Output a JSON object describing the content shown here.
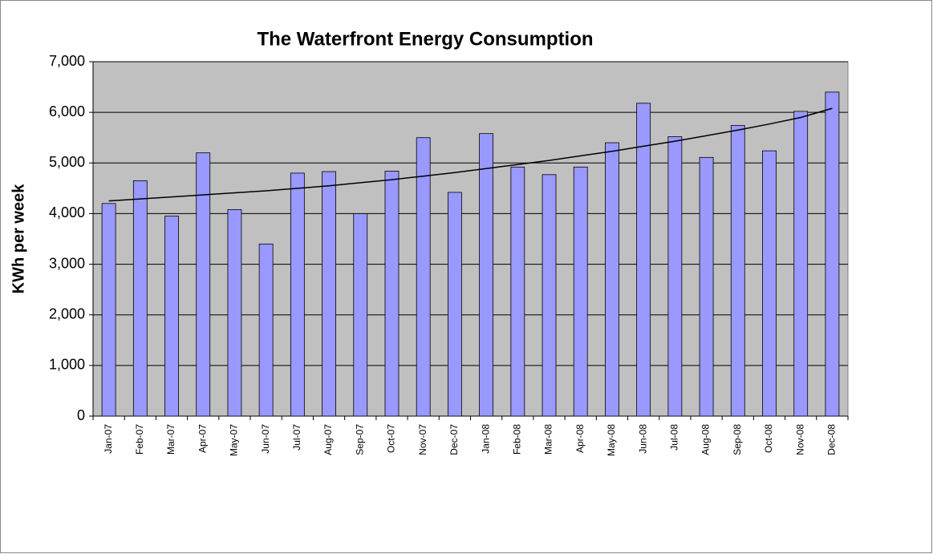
{
  "chart_data": {
    "type": "bar",
    "title": "The Waterfront Energy Consumption",
    "y_label": "KWh per week",
    "categories": [
      "Jan-07",
      "Feb-07",
      "Mar-07",
      "Apr-07",
      "May-07",
      "Jun-07",
      "Jul-07",
      "Aug-07",
      "Sep-07",
      "Oct-07",
      "Nov-07",
      "Dec-07",
      "Jan-08",
      "Feb-08",
      "Mar-08",
      "Apr-08",
      "May-08",
      "Jun-08",
      "Jul-08",
      "Aug-08",
      "Sep-08",
      "Oct-08",
      "Nov-08",
      "Dec-08"
    ],
    "values": [
      4200,
      4650,
      3950,
      5200,
      4080,
      3400,
      4800,
      4830,
      4000,
      4840,
      5500,
      4420,
      5580,
      4920,
      4770,
      4920,
      5400,
      6180,
      5520,
      5110,
      5740,
      5240,
      6020,
      6400
    ],
    "color": "#9999ff",
    "trendline": {
      "color": "#000000",
      "values": [
        4250,
        4290,
        4330,
        4370,
        4410,
        4450,
        4500,
        4550,
        4610,
        4670,
        4740,
        4810,
        4890,
        4970,
        5050,
        5140,
        5230,
        5330,
        5430,
        5540,
        5650,
        5770,
        5900,
        6080
      ]
    },
    "ylim": [
      0,
      7000
    ],
    "yticks": [
      0,
      {
        "value": 1000,
        "label": "1,000"
      },
      {
        "value": 2000,
        "label": "2,000"
      },
      {
        "value": 3000,
        "label": "3,000"
      },
      {
        "value": 4000,
        "label": "4,000"
      },
      {
        "value": 5000,
        "label": "5,000"
      },
      {
        "value": 6000,
        "label": "6,000"
      },
      {
        "value": 7000,
        "label": "7,000"
      }
    ],
    "grid": true,
    "plot_background": "#c0c0c0"
  }
}
